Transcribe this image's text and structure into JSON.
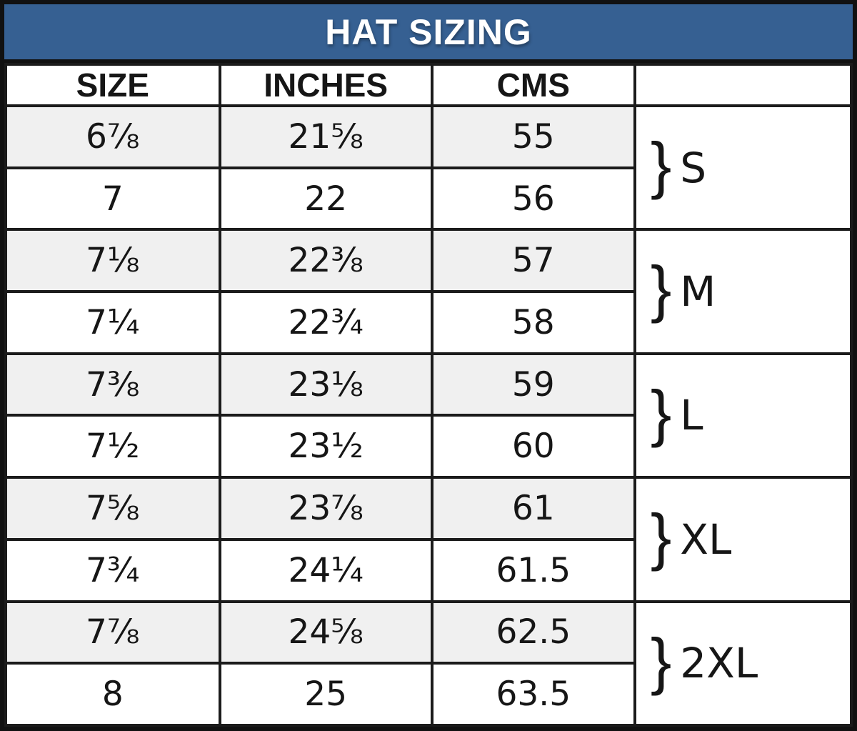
{
  "chart_data": {
    "type": "table",
    "title": "HAT SIZING",
    "columns": [
      "SIZE",
      "INCHES",
      "CMS",
      ""
    ],
    "brace": "}",
    "groups": [
      {
        "label": "S",
        "rows": [
          [
            "6⅞",
            "21⅝",
            "55"
          ],
          [
            "7",
            "22",
            "56"
          ]
        ]
      },
      {
        "label": "M",
        "rows": [
          [
            "7⅛",
            "22⅜",
            "57"
          ],
          [
            "7¼",
            "22¾",
            "58"
          ]
        ]
      },
      {
        "label": "L",
        "rows": [
          [
            "7⅜",
            "23⅛",
            "59"
          ],
          [
            "7½",
            "23½",
            "60"
          ]
        ]
      },
      {
        "label": "XL",
        "rows": [
          [
            "7⅝",
            "23⅞",
            "61"
          ],
          [
            "7¾",
            "24¼",
            "61.5"
          ]
        ]
      },
      {
        "label": "2XL",
        "rows": [
          [
            "7⅞",
            "24⅝",
            "62.5"
          ],
          [
            "8",
            "25",
            "63.5"
          ]
        ]
      }
    ],
    "layout_hints": {
      "grid": true,
      "legend_position": "none",
      "first_row_of_each_group_shaded": true,
      "group_label_column": "rightmost, brace spans 2 rows"
    }
  },
  "colors": {
    "header_blue": "#366092",
    "title_text": "#ffffff",
    "shaded_row": "#f0f0f0",
    "border": "#1b1b1b",
    "cell_text": "#161616"
  }
}
